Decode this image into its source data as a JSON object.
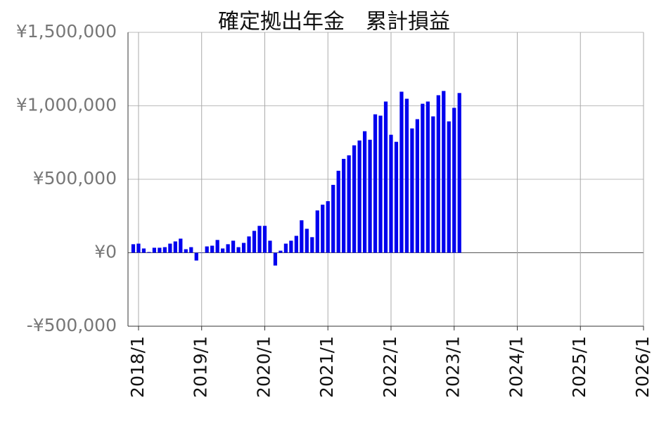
{
  "chart_data": {
    "type": "bar",
    "title": "確定拠出年金　累計損益",
    "x": [
      "2017/12",
      "2018/1",
      "2018/2",
      "2018/3",
      "2018/4",
      "2018/5",
      "2018/6",
      "2018/7",
      "2018/8",
      "2018/9",
      "2018/10",
      "2018/11",
      "2018/12",
      "2019/1",
      "2019/2",
      "2019/3",
      "2019/4",
      "2019/5",
      "2019/6",
      "2019/7",
      "2019/8",
      "2019/9",
      "2019/10",
      "2019/11",
      "2019/12",
      "2020/1",
      "2020/2",
      "2020/3",
      "2020/4",
      "2020/5",
      "2020/6",
      "2020/7",
      "2020/8",
      "2020/9",
      "2020/10",
      "2020/11",
      "2020/12",
      "2021/1",
      "2021/2",
      "2021/3",
      "2021/4",
      "2021/5",
      "2021/6",
      "2021/7",
      "2021/8",
      "2021/9",
      "2021/10",
      "2021/11",
      "2021/12",
      "2022/1",
      "2022/2",
      "2022/3",
      "2022/4",
      "2022/5",
      "2022/6",
      "2022/7",
      "2022/8",
      "2022/9",
      "2022/10",
      "2022/11",
      "2022/12",
      "2023/1",
      "2023/2"
    ],
    "values": [
      58000,
      62000,
      29000,
      5000,
      34000,
      34000,
      38000,
      62000,
      77000,
      96000,
      24000,
      38000,
      -53000,
      2000,
      43000,
      48000,
      87000,
      29000,
      58000,
      82000,
      38000,
      67000,
      111000,
      149000,
      183000,
      183000,
      82000,
      -87000,
      14000,
      62000,
      82000,
      115000,
      221000,
      163000,
      106000,
      288000,
      327000,
      351000,
      462000,
      558000,
      639000,
      663000,
      731000,
      764000,
      827000,
      769000,
      942000,
      933000,
      1029000,
      803000,
      755000,
      1096000,
      1048000,
      846000,
      909000,
      1014000,
      1029000,
      928000,
      1072000,
      1101000,
      894000,
      986000,
      1087000
    ],
    "color": "#0000ee",
    "xlim": [
      "2017/11",
      "2026/1"
    ],
    "xticks": [
      "2018/1",
      "2019/1",
      "2020/1",
      "2021/1",
      "2022/1",
      "2023/1",
      "2024/1",
      "2025/1",
      "2026/1"
    ],
    "ylim": [
      -500000,
      1500000
    ],
    "yticks": [
      {
        "value": -500000,
        "label": "-¥500,000"
      },
      {
        "value": 0,
        "label": "¥0"
      },
      {
        "value": 500000,
        "label": "¥500,000"
      },
      {
        "value": 1000000,
        "label": "¥1,000,000"
      },
      {
        "value": 1500000,
        "label": "¥1,500,000"
      }
    ],
    "grid": true
  }
}
